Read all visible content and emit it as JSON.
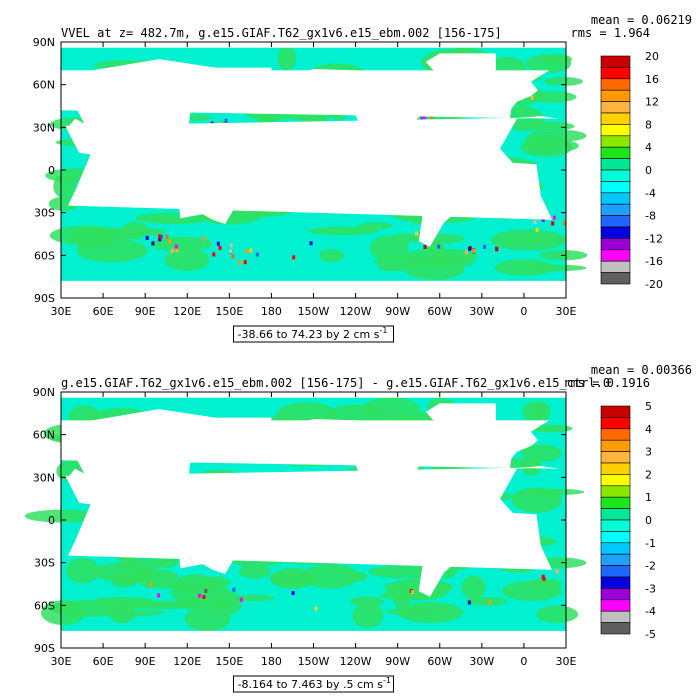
{
  "chart_data": [
    {
      "type": "heatmap",
      "title": "VVEL at z= 482.7m, g.e15.GIAF.T62_gx1v6.e15_ebm.002 [156-175]",
      "stats": {
        "mean": "mean = 0.06219",
        "rms": "rms = 1.964"
      },
      "x_ticks": [
        "30E",
        "60E",
        "90E",
        "120E",
        "150E",
        "180",
        "150W",
        "120W",
        "90W",
        "60W",
        "30W",
        "0",
        "30E"
      ],
      "y_ticks": [
        "90N",
        "60N",
        "30N",
        "0",
        "30S",
        "60S",
        "90S"
      ],
      "colorbar_levels": [
        "20",
        "16",
        "12",
        "8",
        "4",
        "0",
        "-4",
        "-8",
        "-12",
        "-16",
        "-20"
      ],
      "range_text": "-38.66 to 74.23 by 2 cm s",
      "range_exp": "-1",
      "vmin": -20,
      "vmax": 20
    },
    {
      "type": "heatmap",
      "title": "g.e15.GIAF.T62_gx1v6.e15_ebm.002 [156-175] - g.e15.GIAF.T62_gx1v6.e15_ctrl.0",
      "stats": {
        "mean": "mean = 0.00366",
        "rms": "rms = 0.1916"
      },
      "x_ticks": [
        "30E",
        "60E",
        "90E",
        "120E",
        "150E",
        "180",
        "150W",
        "120W",
        "90W",
        "60W",
        "30W",
        "0",
        "30E"
      ],
      "y_ticks": [
        "90N",
        "60N",
        "30N",
        "0",
        "30S",
        "60S",
        "90S"
      ],
      "colorbar_levels": [
        "5",
        "4",
        "3",
        "2",
        "1",
        "0",
        "-1",
        "-2",
        "-3",
        "-4",
        "-5"
      ],
      "range_text": "-8.164 to 7.463 by .5 cm s",
      "range_exp": "-1",
      "vmin": -5,
      "vmax": 5
    }
  ],
  "colors": {
    "palette": [
      "#5f5f5f",
      "#c0c0c0",
      "#ff00ff",
      "#9a00d6",
      "#0000e0",
      "#1f66ff",
      "#1ea0ff",
      "#00c8ff",
      "#00ffff",
      "#00ffd6",
      "#00e896",
      "#1ee61e",
      "#8ce600",
      "#ffff00",
      "#ffd000",
      "#ffb440",
      "#ff9a00",
      "#ff6a00",
      "#ff0000",
      "#c80000"
    ],
    "ocean_base": "#00f0d0",
    "ocean_green": "#30e060",
    "land": "#ffffff"
  }
}
